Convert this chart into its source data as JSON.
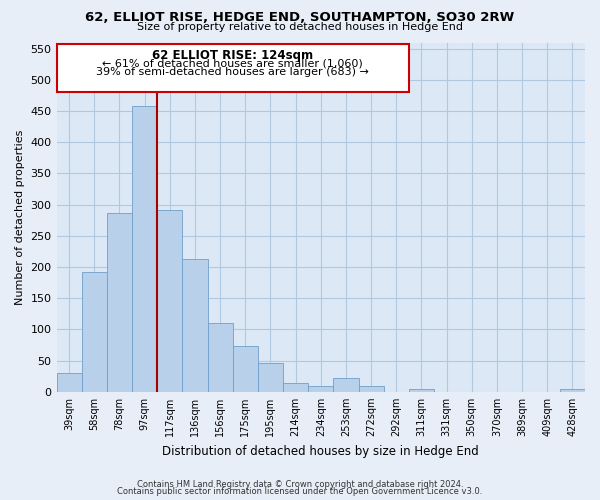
{
  "title": "62, ELLIOT RISE, HEDGE END, SOUTHAMPTON, SO30 2RW",
  "subtitle": "Size of property relative to detached houses in Hedge End",
  "xlabel": "Distribution of detached houses by size in Hedge End",
  "ylabel": "Number of detached properties",
  "bar_labels": [
    "39sqm",
    "58sqm",
    "78sqm",
    "97sqm",
    "117sqm",
    "136sqm",
    "156sqm",
    "175sqm",
    "195sqm",
    "214sqm",
    "234sqm",
    "253sqm",
    "272sqm",
    "292sqm",
    "311sqm",
    "331sqm",
    "350sqm",
    "370sqm",
    "389sqm",
    "409sqm",
    "428sqm"
  ],
  "bar_values": [
    30,
    192,
    287,
    458,
    291,
    213,
    110,
    74,
    46,
    14,
    10,
    22,
    9,
    0,
    5,
    0,
    0,
    0,
    0,
    0,
    4
  ],
  "bar_color": "#b8d0ea",
  "bar_edge_color": "#6fa0cc",
  "vline_position": 3.5,
  "vline_color": "#aa0000",
  "annotation_title": "62 ELLIOT RISE: 124sqm",
  "annotation_line1": "← 61% of detached houses are smaller (1,060)",
  "annotation_line2": "39% of semi-detached houses are larger (683) →",
  "annotation_box_facecolor": "#ffffff",
  "annotation_box_edgecolor": "#cc0000",
  "ylim": [
    0,
    560
  ],
  "yticks": [
    0,
    50,
    100,
    150,
    200,
    250,
    300,
    350,
    400,
    450,
    500,
    550
  ],
  "footer_line1": "Contains HM Land Registry data © Crown copyright and database right 2024.",
  "footer_line2": "Contains public sector information licensed under the Open Government Licence v3.0.",
  "bg_color": "#e8eef8",
  "plot_bg_color": "#dce8f5",
  "grid_color": "#b0c8e0"
}
